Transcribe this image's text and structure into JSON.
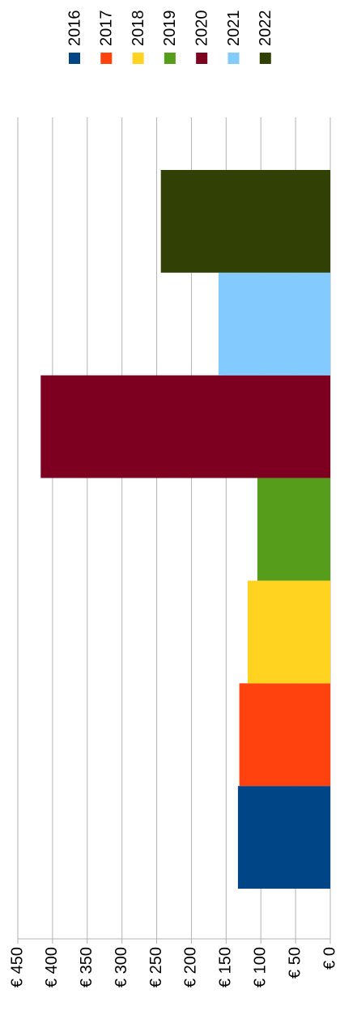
{
  "chart_data": {
    "type": "bar",
    "series": [
      {
        "name": "2016",
        "color": "#004586",
        "values": [
          133
        ]
      },
      {
        "name": "2017",
        "color": "#ff420e",
        "values": [
          131
        ]
      },
      {
        "name": "2018",
        "color": "#ffd320",
        "values": [
          119
        ]
      },
      {
        "name": "2019",
        "color": "#579d1c",
        "values": [
          105
        ]
      },
      {
        "name": "2020",
        "color": "#7e0021",
        "values": [
          417
        ]
      },
      {
        "name": "2021",
        "color": "#83caff",
        "values": [
          161
        ]
      },
      {
        "name": "2022",
        "color": "#314004",
        "values": [
          244
        ]
      }
    ],
    "ylim": [
      0,
      450
    ],
    "yticks": [
      {
        "value": 0,
        "label": "€ 0"
      },
      {
        "value": 50,
        "label": "€ 50"
      },
      {
        "value": 100,
        "label": "€ 100"
      },
      {
        "value": 150,
        "label": "€ 150"
      },
      {
        "value": 200,
        "label": "€ 200"
      },
      {
        "value": 250,
        "label": "€ 250"
      },
      {
        "value": 300,
        "label": "€ 300"
      },
      {
        "value": 350,
        "label": "€ 350"
      },
      {
        "value": 400,
        "label": "€ 400"
      },
      {
        "value": 450,
        "label": "€ 450"
      }
    ],
    "grid": true
  }
}
